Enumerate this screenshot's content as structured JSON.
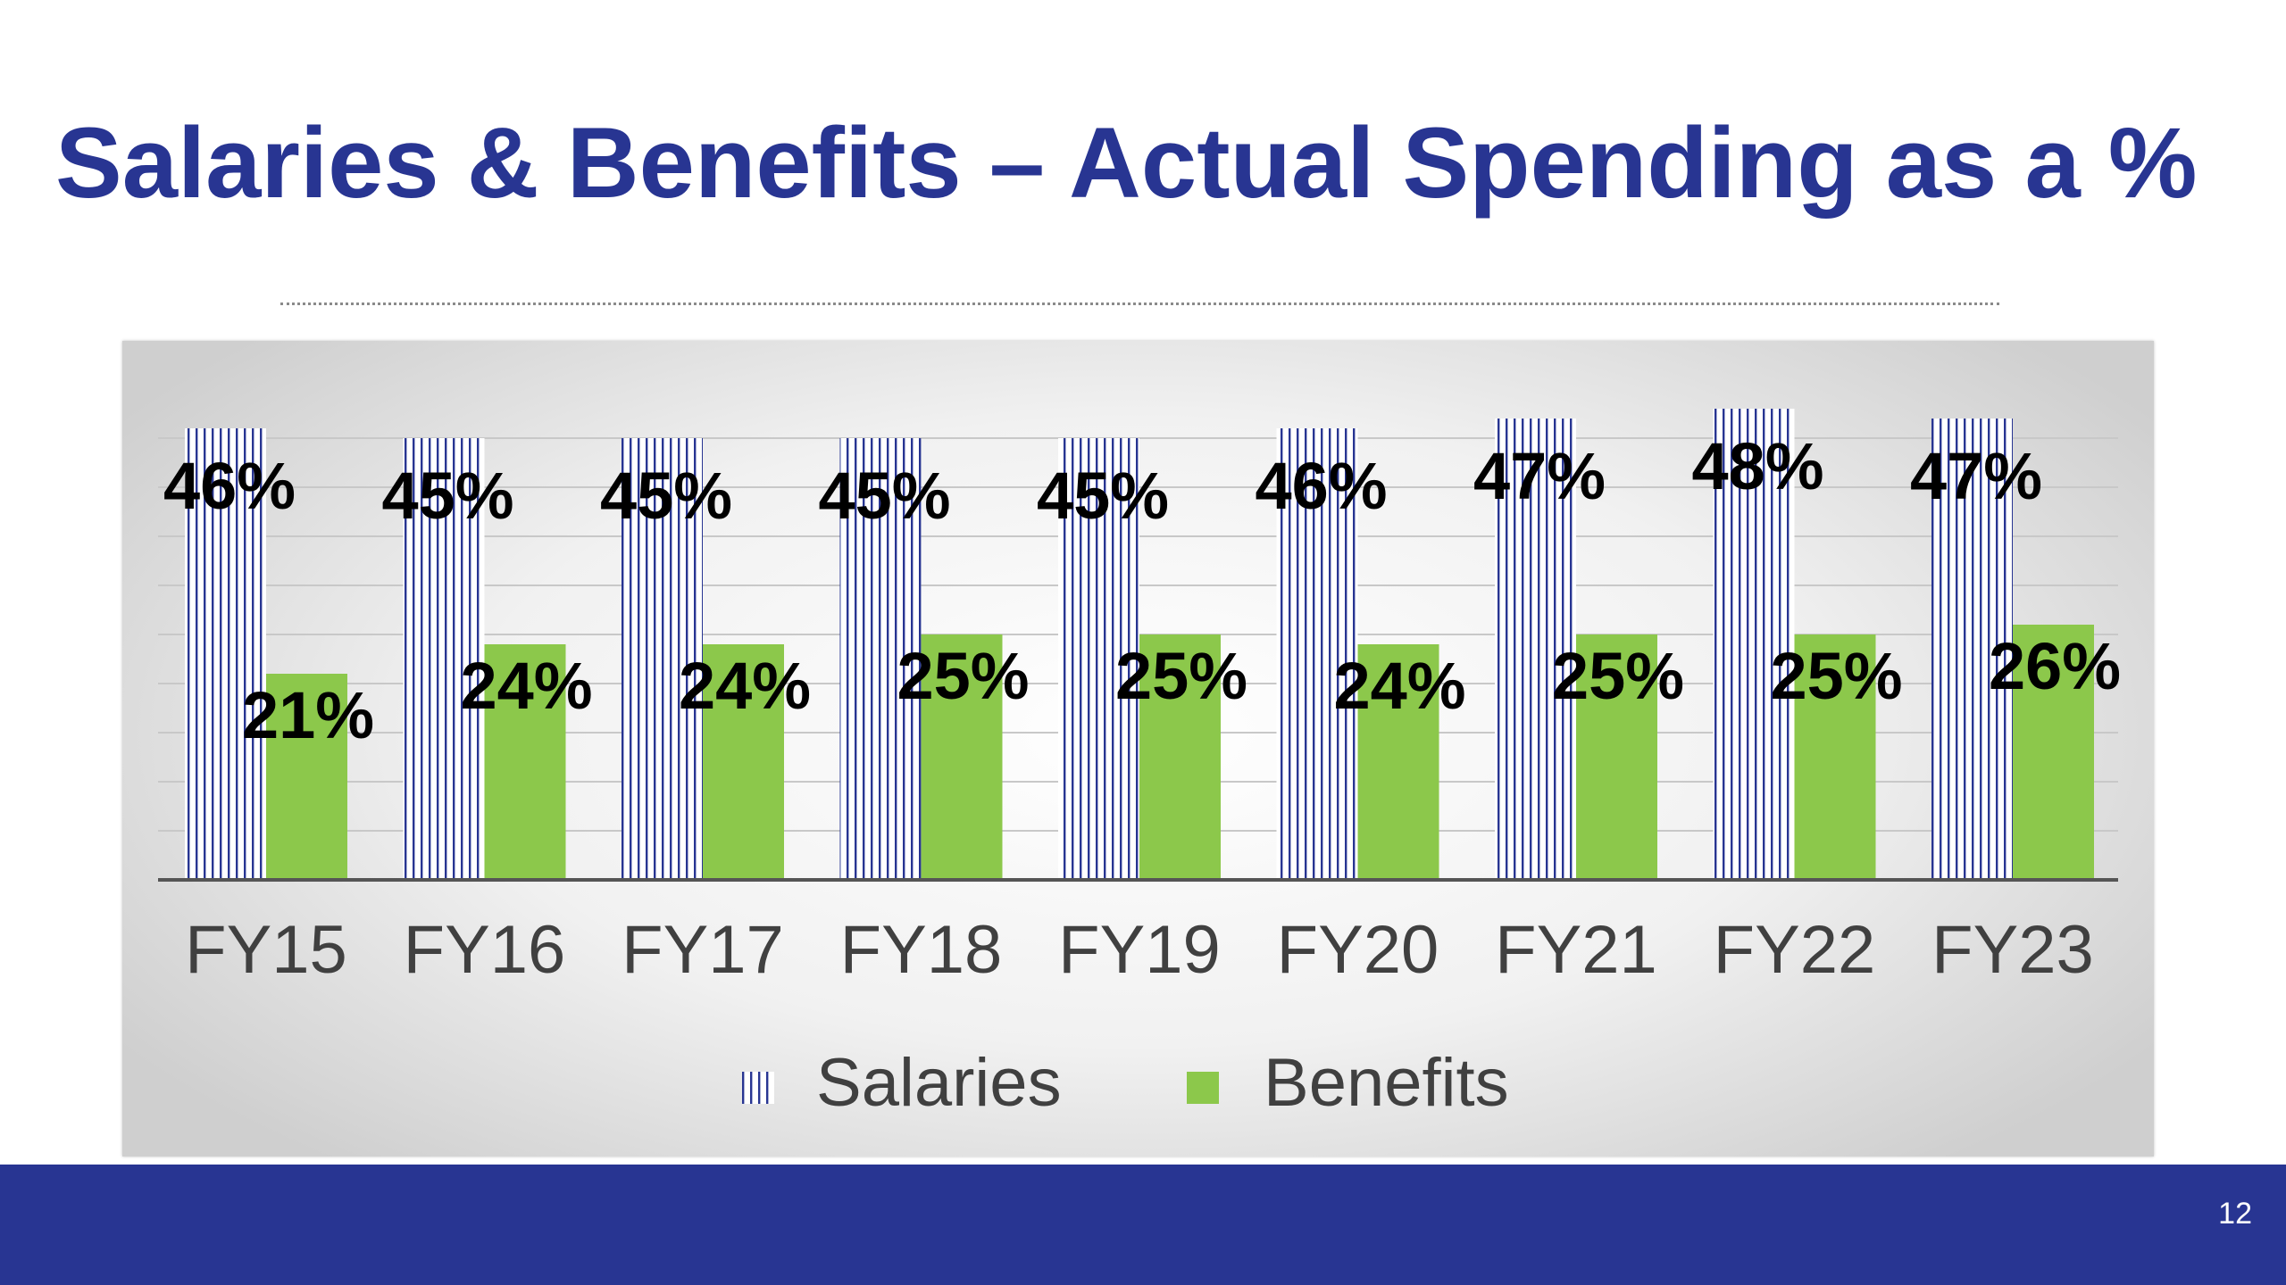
{
  "slide": {
    "title": "Salaries & Benefits – Actual Spending as a %",
    "page_number": "12"
  },
  "colors": {
    "title": "#283592",
    "footer": "#283592",
    "salaries": "#283592",
    "benefits": "#8cc84b"
  },
  "chart_data": {
    "type": "bar",
    "title": "",
    "xlabel": "",
    "ylabel": "",
    "categories": [
      "FY15",
      "FY16",
      "FY17",
      "FY18",
      "FY19",
      "FY20",
      "FY21",
      "FY22",
      "FY23"
    ],
    "series": [
      {
        "name": "Salaries",
        "pattern": "vertical-stripes",
        "values": [
          46,
          45,
          45,
          45,
          45,
          46,
          47,
          48,
          47
        ],
        "labels": [
          "46%",
          "45%",
          "45%",
          "45%",
          "45%",
          "46%",
          "47%",
          "48%",
          "47%"
        ]
      },
      {
        "name": "Benefits",
        "pattern": "solid",
        "values": [
          21,
          24,
          24,
          25,
          25,
          24,
          25,
          25,
          26
        ],
        "labels": [
          "21%",
          "24%",
          "24%",
          "25%",
          "25%",
          "24%",
          "25%",
          "25%",
          "26%"
        ]
      }
    ],
    "ylim": [
      0,
      48
    ],
    "y_axis_visible": false,
    "grid": true,
    "legend": "bottom"
  }
}
